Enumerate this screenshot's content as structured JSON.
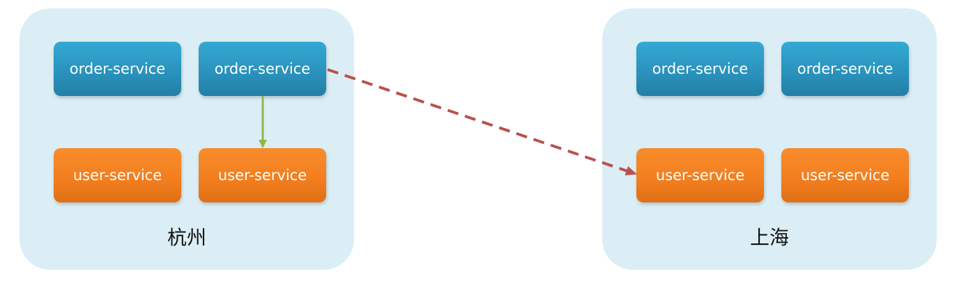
{
  "clusters": {
    "hangzhou": {
      "name": "杭州",
      "services": {
        "order_1": "order-service",
        "order_2": "order-service",
        "user_1": "user-service",
        "user_2": "user-service"
      }
    },
    "shanghai": {
      "name": "上海",
      "services": {
        "order_1": "order-service",
        "order_2": "order-service",
        "user_1": "user-service",
        "user_2": "user-service"
      }
    }
  },
  "colors": {
    "cluster_bg": "#dbeef5",
    "order_service": "#2a93bd",
    "user_service": "#f37f1f",
    "local_call_arrow": "#8db94a",
    "cross_region_arrow": "#b9514e"
  },
  "edges": [
    {
      "from": "hangzhou.order_2",
      "to": "hangzhou.user_2",
      "style": "solid"
    },
    {
      "from": "hangzhou.order_2",
      "to": "shanghai.user_1",
      "style": "dashed"
    }
  ]
}
